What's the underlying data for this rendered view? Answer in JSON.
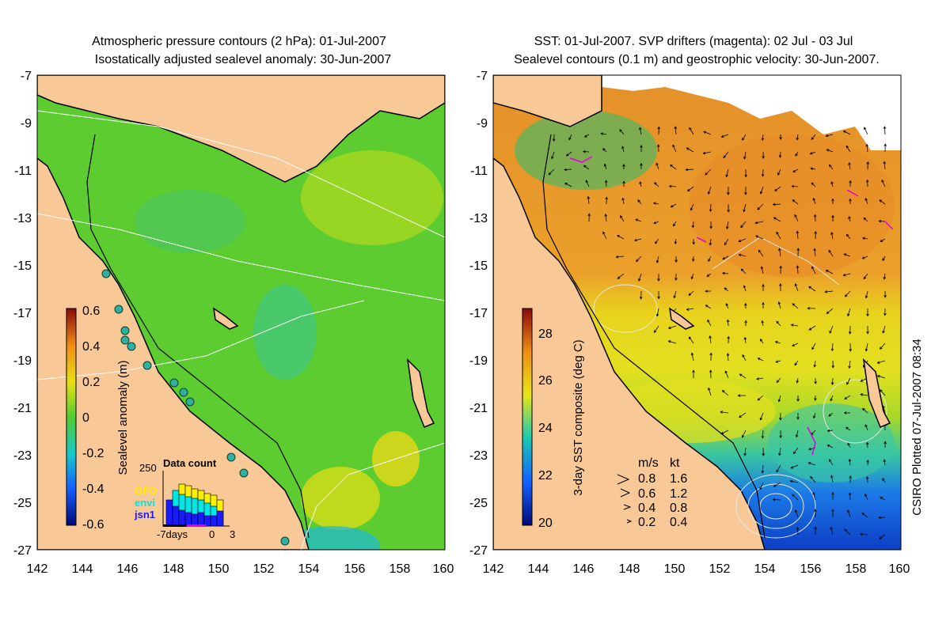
{
  "left_panel": {
    "title_line1": "Atmospheric pressure contours (2 hPa): 01-Jul-2007",
    "title_line2": "Isostatically adjusted sealevel anomaly: 30-Jun-2007",
    "colorbar": {
      "label": "Sealevel anomaly (m)",
      "ticks": [
        "0.6",
        "0.4",
        "0.2",
        "0",
        "-0.2",
        "-0.4",
        "-0.6"
      ]
    },
    "data_count": {
      "title": "Data count",
      "y_max_label": "250",
      "legend": [
        {
          "label": "GFO",
          "color": "#ffee00"
        },
        {
          "label": "envi",
          "color": "#00e5e5"
        },
        {
          "label": "jsn1",
          "color": "#1a1aff"
        }
      ],
      "x_labels": [
        "-7days",
        "0",
        "3"
      ]
    }
  },
  "right_panel": {
    "title_line1": "SST: 01-Jul-2007. SVP drifters (magenta): 02 Jul - 03 Jul",
    "title_line2": "Sealevel contours (0.1 m) and geostrophic velocity: 30-Jun-2007.",
    "colorbar": {
      "label": "3-day SST composite (deg C)",
      "ticks": [
        "28",
        "26",
        "24",
        "22",
        "20"
      ]
    },
    "velocity_legend": {
      "header_ms": "m/s",
      "header_kt": "kt",
      "rows": [
        {
          "ms": "0.8",
          "kt": "1.6"
        },
        {
          "ms": "0.6",
          "kt": "1.2"
        },
        {
          "ms": "0.4",
          "kt": "0.8"
        },
        {
          "ms": "0.2",
          "kt": "0.4"
        }
      ]
    },
    "credit": "CSIRO Plotted 07-Jul-2007 08:34"
  },
  "axes": {
    "x_ticks": [
      "142",
      "144",
      "146",
      "148",
      "150",
      "152",
      "154",
      "156",
      "158",
      "160"
    ],
    "y_ticks": [
      "-7",
      "-9",
      "-11",
      "-13",
      "-15",
      "-17",
      "-19",
      "-21",
      "-23",
      "-25",
      "-27"
    ]
  },
  "colors": {
    "land": "#f8c896",
    "sla_background": "#66cc33",
    "sst_warm": "#e89a28",
    "sst_mid": "#e6e020",
    "sst_cool": "#1a5adf",
    "drifters": "#e000e0"
  }
}
